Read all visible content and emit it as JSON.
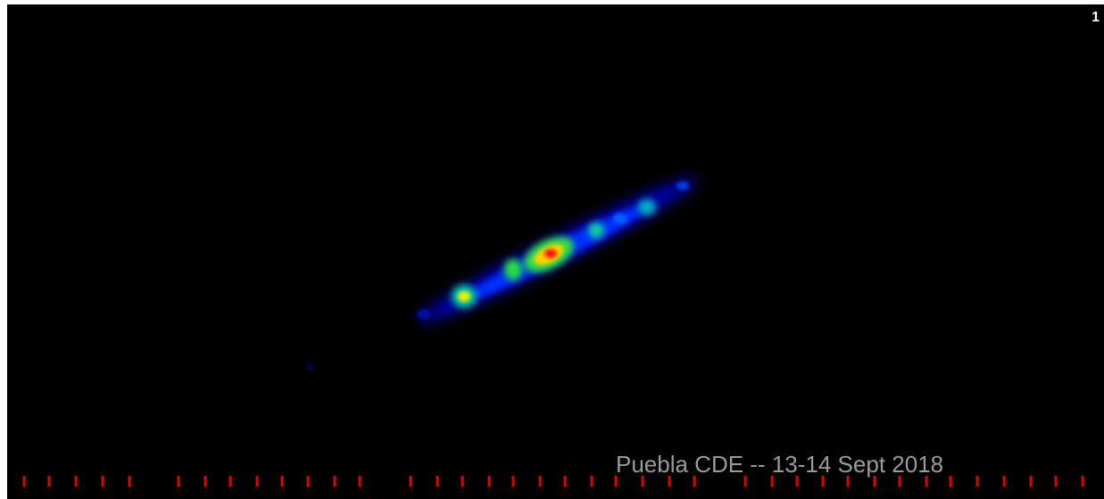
{
  "corner_label": "1",
  "caption": "Puebla CDE -- 13-14 Sept 2018"
}
